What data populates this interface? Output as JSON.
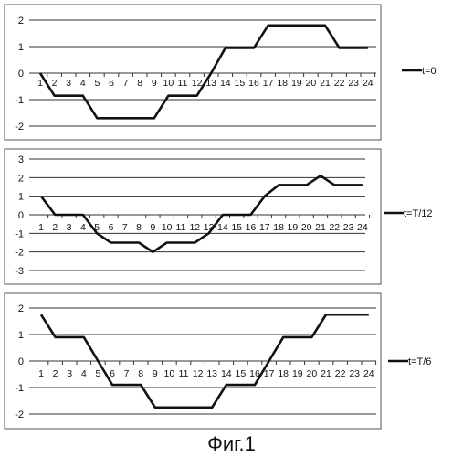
{
  "chart_data": [
    {
      "type": "line",
      "x": [
        1,
        2,
        3,
        4,
        5,
        6,
        7,
        8,
        9,
        10,
        11,
        12,
        13,
        14,
        15,
        16,
        17,
        18,
        19,
        20,
        21,
        22,
        23,
        24
      ],
      "series": [
        {
          "name": "t=0",
          "values": [
            0,
            -0.85,
            -0.85,
            -0.85,
            -1.7,
            -1.7,
            -1.7,
            -1.7,
            -1.7,
            -0.85,
            -0.85,
            -0.85,
            0,
            0.95,
            0.95,
            0.95,
            1.8,
            1.8,
            1.8,
            1.8,
            1.8,
            0.95,
            0.95,
            0.95
          ]
        }
      ],
      "y_ticks": [
        "2",
        "1",
        "0",
        "-1",
        "-2"
      ],
      "ylim": [
        -2,
        2
      ],
      "legend": "right",
      "grid": true
    },
    {
      "type": "line",
      "x": [
        1,
        2,
        3,
        4,
        5,
        6,
        7,
        8,
        9,
        10,
        11,
        12,
        13,
        14,
        15,
        16,
        17,
        18,
        19,
        20,
        21,
        22,
        23,
        24
      ],
      "series": [
        {
          "name": "t=T/12",
          "values": [
            1,
            0,
            0,
            0,
            -1,
            -1.5,
            -1.5,
            -1.5,
            -2,
            -1.5,
            -1.5,
            -1.5,
            -1,
            0,
            0,
            0,
            1,
            1.6,
            1.6,
            1.6,
            2.1,
            1.6,
            1.6,
            1.6
          ]
        }
      ],
      "y_ticks": [
        "3",
        "2",
        "1",
        "0",
        "-1",
        "-2",
        "-3"
      ],
      "ylim": [
        -3,
        3
      ],
      "legend": "right",
      "grid": true
    },
    {
      "type": "line",
      "x": [
        1,
        2,
        3,
        4,
        5,
        6,
        7,
        8,
        9,
        10,
        11,
        12,
        13,
        14,
        15,
        16,
        17,
        18,
        19,
        20,
        21,
        22,
        23,
        24
      ],
      "series": [
        {
          "name": "t=T/6",
          "values": [
            1.75,
            0.9,
            0.9,
            0.9,
            0,
            -0.9,
            -0.9,
            -0.9,
            -1.75,
            -1.75,
            -1.75,
            -1.75,
            -1.75,
            -0.9,
            -0.9,
            -0.9,
            0,
            0.9,
            0.9,
            0.9,
            1.75,
            1.75,
            1.75,
            1.75
          ]
        }
      ],
      "y_ticks": [
        "2",
        "1",
        "0",
        "-1",
        "-2"
      ],
      "ylim": [
        -2,
        2
      ],
      "legend": "right",
      "grid": true
    }
  ],
  "caption": "Фиг.1"
}
